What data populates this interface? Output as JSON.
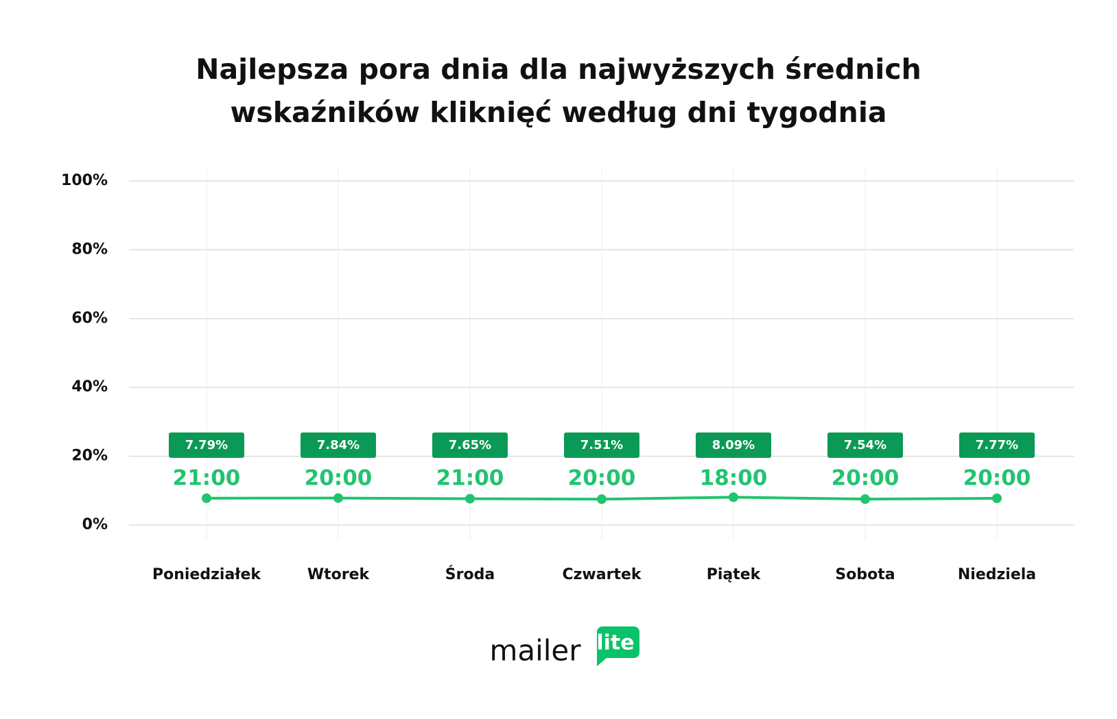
{
  "chart_data": {
    "type": "line",
    "title": "Najlepsza pora dnia dla najwyższych średnich wskaźników kliknięć według dni tygodnia",
    "categories": [
      "Poniedziałek",
      "Wtorek",
      "Środa",
      "Czwartek",
      "Piątek",
      "Sobota",
      "Niedziela"
    ],
    "values": [
      7.79,
      7.84,
      7.65,
      7.51,
      8.09,
      7.54,
      7.77
    ],
    "value_labels": [
      "7.79%",
      "7.84%",
      "7.65%",
      "7.51%",
      "8.09%",
      "7.54%",
      "7.77%"
    ],
    "annotations": [
      "21:00",
      "20:00",
      "21:00",
      "20:00",
      "18:00",
      "20:00",
      "20:00"
    ],
    "color": "#22c36f",
    "label_color": "#0a9a55",
    "ylim": [
      0,
      100
    ],
    "yticks": [
      {
        "value": 0,
        "label": "0%"
      },
      {
        "value": 20,
        "label": "20%"
      },
      {
        "value": 40,
        "label": "40%"
      },
      {
        "value": 60,
        "label": "60%"
      },
      {
        "value": 80,
        "label": "80%"
      },
      {
        "value": 100,
        "label": "100%"
      }
    ],
    "grid": true
  },
  "logo": {
    "text": "mailer",
    "badge": "lite"
  }
}
